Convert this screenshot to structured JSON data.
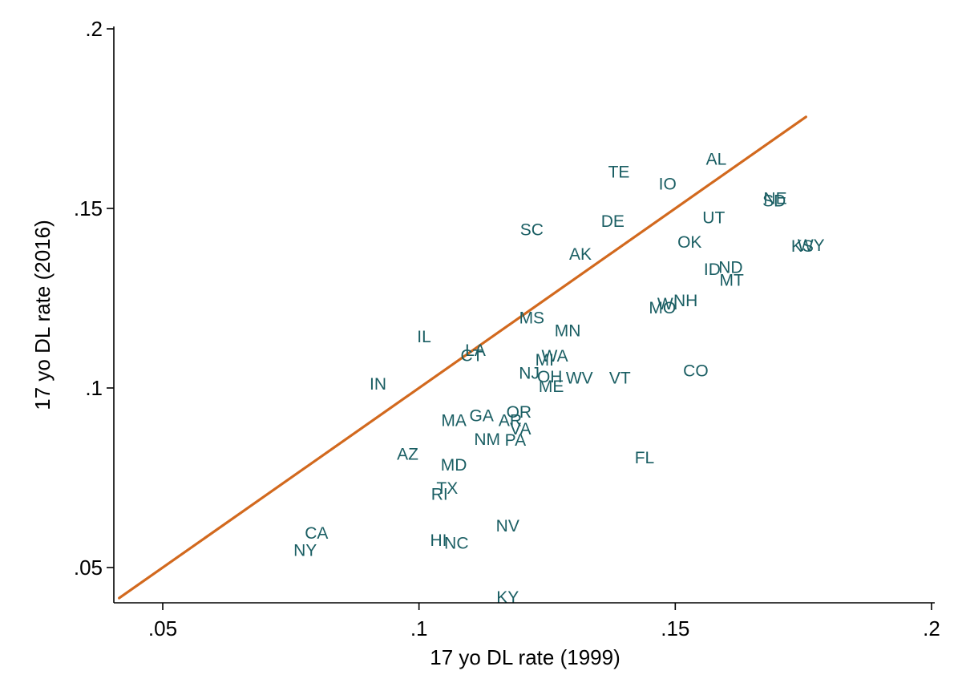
{
  "colors": {
    "label": "#1a5e63",
    "fit_line": "#d2691e",
    "axis": "#000000",
    "background": "#ffffff"
  },
  "chart_data": {
    "type": "scatter",
    "title": "",
    "xlabel": "17 yo DL rate (1999)",
    "ylabel": "17 yo DL rate (2016)",
    "xlim": [
      0.04,
      0.2
    ],
    "ylim": [
      0.04,
      0.2
    ],
    "xticks": [
      {
        "value": 0.05,
        "label": ".05"
      },
      {
        "value": 0.1,
        "label": ".1"
      },
      {
        "value": 0.15,
        "label": ".15"
      },
      {
        "value": 0.2,
        "label": ".2"
      }
    ],
    "yticks": [
      {
        "value": 0.05,
        "label": ".05"
      },
      {
        "value": 0.1,
        "label": ".1"
      },
      {
        "value": 0.15,
        "label": ".15"
      },
      {
        "value": 0.2,
        "label": ".2"
      }
    ],
    "grid": false,
    "fit_line": {
      "x1": 0.0415,
      "y1": 0.0415,
      "x2": 0.1755,
      "y2": 0.1755
    },
    "points": [
      {
        "label": "AL",
        "x": 0.158,
        "y": 0.164
      },
      {
        "label": "TE",
        "x": 0.139,
        "y": 0.1604
      },
      {
        "label": "IO",
        "x": 0.1485,
        "y": 0.157
      },
      {
        "label": "NE",
        "x": 0.1695,
        "y": 0.153
      },
      {
        "label": "SD",
        "x": 0.1693,
        "y": 0.1523
      },
      {
        "label": "UT",
        "x": 0.1575,
        "y": 0.1477
      },
      {
        "label": "DE",
        "x": 0.1378,
        "y": 0.1467
      },
      {
        "label": "SC",
        "x": 0.122,
        "y": 0.1443
      },
      {
        "label": "OK",
        "x": 0.1528,
        "y": 0.1408
      },
      {
        "label": "KS",
        "x": 0.1748,
        "y": 0.1397
      },
      {
        "label": "WY",
        "x": 0.1765,
        "y": 0.14
      },
      {
        "label": "AK",
        "x": 0.1315,
        "y": 0.1375
      },
      {
        "label": "ID",
        "x": 0.1572,
        "y": 0.1333
      },
      {
        "label": "ND",
        "x": 0.1608,
        "y": 0.1338
      },
      {
        "label": "MT",
        "x": 0.161,
        "y": 0.1303
      },
      {
        "label": "NH",
        "x": 0.152,
        "y": 0.1245
      },
      {
        "label": "WI",
        "x": 0.1485,
        "y": 0.1237
      },
      {
        "label": "MO",
        "x": 0.1475,
        "y": 0.1226
      },
      {
        "label": "MS",
        "x": 0.122,
        "y": 0.1197
      },
      {
        "label": "MN",
        "x": 0.129,
        "y": 0.1162
      },
      {
        "label": "IL",
        "x": 0.101,
        "y": 0.1145
      },
      {
        "label": "LA",
        "x": 0.111,
        "y": 0.1107
      },
      {
        "label": "CT",
        "x": 0.1103,
        "y": 0.1093
      },
      {
        "label": "WA",
        "x": 0.1265,
        "y": 0.1091
      },
      {
        "label": "MI",
        "x": 0.1245,
        "y": 0.108
      },
      {
        "label": "CO",
        "x": 0.154,
        "y": 0.105
      },
      {
        "label": "NJ",
        "x": 0.1215,
        "y": 0.1043
      },
      {
        "label": "OH",
        "x": 0.1255,
        "y": 0.1033
      },
      {
        "label": "WV",
        "x": 0.1313,
        "y": 0.103
      },
      {
        "label": "VT",
        "x": 0.1392,
        "y": 0.103
      },
      {
        "label": "ME",
        "x": 0.1258,
        "y": 0.1007
      },
      {
        "label": "IN",
        "x": 0.092,
        "y": 0.1013
      },
      {
        "label": "OR",
        "x": 0.1195,
        "y": 0.0935
      },
      {
        "label": "GA",
        "x": 0.1122,
        "y": 0.0925
      },
      {
        "label": "AR",
        "x": 0.1178,
        "y": 0.0912
      },
      {
        "label": "MA",
        "x": 0.1068,
        "y": 0.0912
      },
      {
        "label": "VA",
        "x": 0.1198,
        "y": 0.0888
      },
      {
        "label": "NM",
        "x": 0.1133,
        "y": 0.0859
      },
      {
        "label": "PA",
        "x": 0.1188,
        "y": 0.0857
      },
      {
        "label": "AZ",
        "x": 0.0978,
        "y": 0.0818
      },
      {
        "label": "FL",
        "x": 0.144,
        "y": 0.0808
      },
      {
        "label": "MD",
        "x": 0.1068,
        "y": 0.0788
      },
      {
        "label": "TX",
        "x": 0.1055,
        "y": 0.0723
      },
      {
        "label": "RI",
        "x": 0.104,
        "y": 0.0707
      },
      {
        "label": "NV",
        "x": 0.1173,
        "y": 0.0618
      },
      {
        "label": "CA",
        "x": 0.08,
        "y": 0.0598
      },
      {
        "label": "HI",
        "x": 0.1038,
        "y": 0.0578
      },
      {
        "label": "NC",
        "x": 0.1073,
        "y": 0.057
      },
      {
        "label": "NY",
        "x": 0.0778,
        "y": 0.055
      },
      {
        "label": "KY",
        "x": 0.1173,
        "y": 0.042
      }
    ]
  }
}
